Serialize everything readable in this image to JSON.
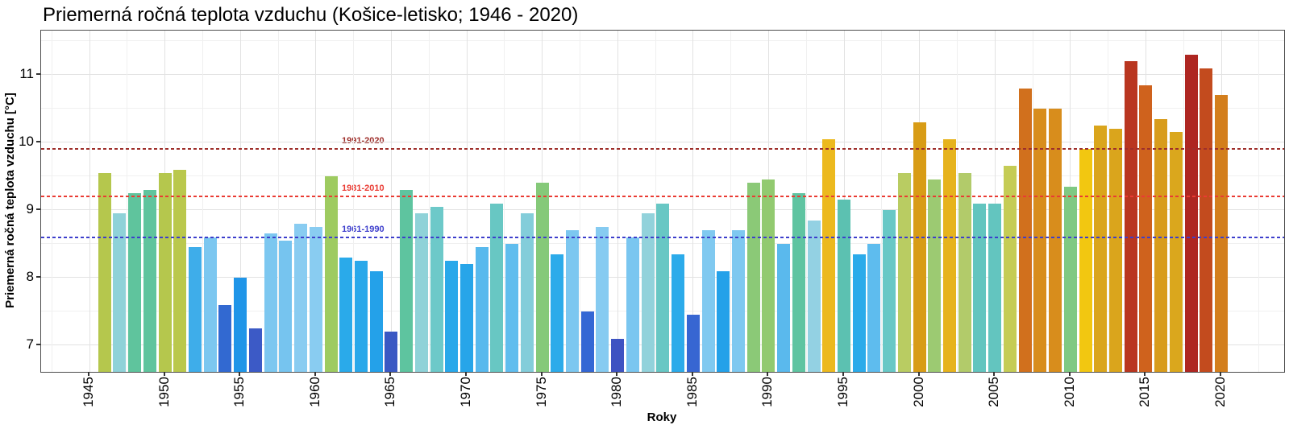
{
  "title": "Priemerná ročná teplota vzduchu (Košice-letisko; 1946 - 2020)",
  "chart_data": {
    "type": "bar",
    "title": "Priemerná ročná teplota vzduchu (Košice-letisko; 1946 - 2020)",
    "xlabel": "Roky",
    "ylabel": "Priemerná ročná teplota vzduchu [°C]",
    "x": [
      1946,
      1947,
      1948,
      1949,
      1950,
      1951,
      1952,
      1953,
      1954,
      1955,
      1956,
      1957,
      1958,
      1959,
      1960,
      1961,
      1962,
      1963,
      1964,
      1965,
      1966,
      1967,
      1968,
      1969,
      1970,
      1971,
      1972,
      1973,
      1974,
      1975,
      1976,
      1977,
      1978,
      1979,
      1980,
      1981,
      1982,
      1983,
      1984,
      1985,
      1986,
      1987,
      1988,
      1989,
      1990,
      1991,
      1992,
      1993,
      1994,
      1995,
      1996,
      1997,
      1998,
      1999,
      2000,
      2001,
      2002,
      2003,
      2004,
      2005,
      2006,
      2007,
      2008,
      2009,
      2010,
      2011,
      2012,
      2013,
      2014,
      2015,
      2016,
      2017,
      2018,
      2019,
      2020
    ],
    "values": [
      9.55,
      8.95,
      9.25,
      9.3,
      9.55,
      9.6,
      8.45,
      8.6,
      7.6,
      8.0,
      7.25,
      8.65,
      8.55,
      8.8,
      8.75,
      9.5,
      8.3,
      8.25,
      8.1,
      7.2,
      9.3,
      8.95,
      9.05,
      8.25,
      8.2,
      8.45,
      9.1,
      8.5,
      8.95,
      9.4,
      8.35,
      8.7,
      7.5,
      8.75,
      7.1,
      8.6,
      8.95,
      9.1,
      8.35,
      7.45,
      8.7,
      8.1,
      8.7,
      9.4,
      9.45,
      8.5,
      9.25,
      8.85,
      10.05,
      9.15,
      8.35,
      8.5,
      9.0,
      9.55,
      10.3,
      9.45,
      10.05,
      9.55,
      9.1,
      9.1,
      9.65,
      10.8,
      10.5,
      10.5,
      9.35,
      9.9,
      10.25,
      10.2,
      11.2,
      10.85,
      10.35,
      10.15,
      11.3,
      11.1,
      10.7
    ],
    "bar_colors": [
      "#b5c74d",
      "#8fd2d8",
      "#5fc49d",
      "#5fc49d",
      "#b5c74d",
      "#bac84c",
      "#3eadea",
      "#7cc7f0",
      "#3269d1",
      "#1f95e8",
      "#3c5ac6",
      "#7cc7f0",
      "#76c4ef",
      "#89ccf1",
      "#89ccf1",
      "#9ecb60",
      "#2aaaea",
      "#29a8ea",
      "#24a1e9",
      "#3a58c3",
      "#5ec49f",
      "#8fd2d8",
      "#6dc9c9",
      "#29a8ea",
      "#27a5e9",
      "#58b9ed",
      "#68c7c3",
      "#60bdee",
      "#83cdda",
      "#85c979",
      "#2cabea",
      "#7cc7f0",
      "#3467d4",
      "#86cbf1",
      "#3e53c2",
      "#7ac6f0",
      "#92d2db",
      "#68c7c4",
      "#2cabea",
      "#3766d2",
      "#80c9f0",
      "#24a1e9",
      "#7ec8f0",
      "#8bc977",
      "#92ca70",
      "#5ab9ed",
      "#5fc4a1",
      "#93d1e3",
      "#ecb91e",
      "#5cc1b1",
      "#2babea",
      "#5ebcee",
      "#68c8c6",
      "#b9cc62",
      "#d89c16",
      "#9cca72",
      "#e6b31d",
      "#b2cb6a",
      "#63c5bf",
      "#63c5bf",
      "#c5cc55",
      "#d1701d",
      "#d88d1c",
      "#d88d1c",
      "#7fc983",
      "#f2c711",
      "#daa51c",
      "#daa51c",
      "#b93620",
      "#cf621d",
      "#d89c1c",
      "#daa71d",
      "#ae2621",
      "#c34b1e",
      "#d37e1c"
    ],
    "ylim": [
      6.6,
      11.65
    ],
    "yticks": [
      7,
      8,
      9,
      10,
      11
    ],
    "yticks_minor": [
      7.5,
      8.5,
      9.5,
      10.5,
      11.5
    ],
    "xticks": [
      1945,
      1950,
      1955,
      1960,
      1965,
      1970,
      1975,
      1980,
      1985,
      1990,
      1995,
      2000,
      2005,
      2010,
      2015,
      2020
    ],
    "x_minor_step": 2.5,
    "grid": true,
    "legend": "none",
    "reference_lines": [
      {
        "label": "1991-2020",
        "value": 9.9,
        "color": "#9e2f2b"
      },
      {
        "label": "1981-2010",
        "value": 9.2,
        "color": "#ea3b33"
      },
      {
        "label": "1961-1990",
        "value": 8.6,
        "color": "#3d3ecc"
      }
    ]
  }
}
